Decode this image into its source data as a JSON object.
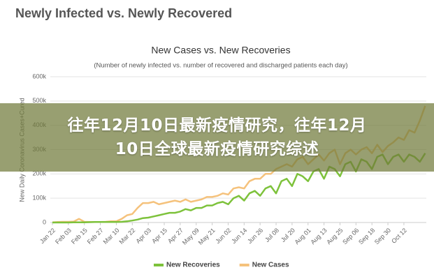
{
  "header": {
    "title": "Newly Infected vs. Newly Recovered"
  },
  "overlay": {
    "lines": [
      "往年12月10日最新疫情研究，往年12月",
      "10日全球最新疫情研究综述"
    ]
  },
  "chart_data": {
    "type": "line",
    "title": "New Cases vs. New Recoveries",
    "subtitle": "(Number of newly infected vs. number of recovered and discharged patients each day)",
    "y_label": "New Daily Coronavirus Cases+Cured",
    "categories": [
      "Jan 22",
      null,
      null,
      "Feb 03",
      null,
      null,
      "Feb 15",
      null,
      null,
      "Feb 27",
      null,
      null,
      "Mar 10",
      null,
      null,
      "Mar 22",
      null,
      null,
      "Apr 03",
      null,
      null,
      "Apr 15",
      null,
      null,
      "Apr 27",
      null,
      null,
      "May 09",
      null,
      null,
      "May 21",
      null,
      null,
      "Jun 02",
      null,
      null,
      "Jun 14",
      null,
      null,
      "Jun 26",
      null,
      null,
      "Jul 08",
      null,
      null,
      "Jul 20",
      null,
      null,
      "Aug 01",
      null,
      null,
      "Aug 13",
      null,
      null,
      "Aug 25",
      null,
      null,
      "Sep 06",
      null,
      null,
      "Sep 18",
      null,
      null,
      "Sep 30",
      null,
      null,
      "Oct 12",
      null,
      null,
      null,
      null
    ],
    "series": [
      {
        "name": "New Recoveries",
        "color": "#7dc23b",
        "values": [
          0,
          0,
          0,
          0,
          500,
          1000,
          1000,
          1500,
          2000,
          2000,
          2000,
          2000,
          2000,
          3000,
          5000,
          8000,
          12000,
          18000,
          20000,
          25000,
          30000,
          35000,
          40000,
          40000,
          45000,
          55000,
          50000,
          60000,
          60000,
          70000,
          70000,
          80000,
          85000,
          75000,
          100000,
          110000,
          90000,
          120000,
          130000,
          110000,
          140000,
          150000,
          120000,
          170000,
          180000,
          150000,
          200000,
          190000,
          170000,
          210000,
          220000,
          180000,
          230000,
          220000,
          190000,
          240000,
          250000,
          210000,
          260000,
          250000,
          220000,
          270000,
          280000,
          240000,
          270000,
          280000,
          250000,
          280000,
          270000,
          250000,
          285000
        ]
      },
      {
        "name": "New Cases",
        "color": "#f5c27c",
        "values": [
          1000,
          2000,
          3000,
          3000,
          4000,
          15000,
          3000,
          2000,
          2000,
          2000,
          3000,
          5000,
          5000,
          15000,
          30000,
          35000,
          60000,
          80000,
          80000,
          85000,
          75000,
          80000,
          85000,
          90000,
          85000,
          95000,
          85000,
          90000,
          95000,
          105000,
          105000,
          110000,
          120000,
          115000,
          140000,
          145000,
          140000,
          170000,
          180000,
          180000,
          200000,
          200000,
          220000,
          230000,
          240000,
          230000,
          260000,
          270000,
          240000,
          260000,
          280000,
          255000,
          285000,
          300000,
          240000,
          285000,
          300000,
          280000,
          300000,
          310000,
          285000,
          320000,
          290000,
          315000,
          330000,
          350000,
          340000,
          380000,
          370000,
          420000,
          480000
        ]
      }
    ],
    "ylim": [
      0,
      600000
    ],
    "yticks": [
      {
        "value": 0,
        "label": "0"
      },
      {
        "value": 100000,
        "label": "100k"
      },
      {
        "value": 200000,
        "label": "200k"
      },
      {
        "value": 300000,
        "label": "300k"
      },
      {
        "value": 400000,
        "label": "400k"
      },
      {
        "value": 500000,
        "label": "500k"
      },
      {
        "value": 600000,
        "label": "600k"
      }
    ],
    "grid": true,
    "legend": "bottom"
  }
}
